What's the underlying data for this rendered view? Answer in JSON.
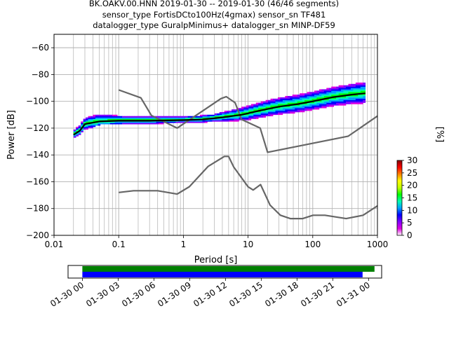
{
  "title": {
    "line1": "BK.OAKV.00.HNN   2019-01-30 -- 2019-01-30  (46/46 segments)",
    "line2": "sensor_type FortisDCto100Hz(4gmax) sensor_sn TF481",
    "line3": "datalogger_type GuralpMinimus+ datalogger_sn MINP-DF59"
  },
  "chart_data": [
    {
      "type": "heatmap",
      "title": "BK.OAKV.00.HNN   2019-01-30 -- 2019-01-30  (46/46 segments)",
      "xlabel": "Period [s]",
      "ylabel": "Power [dB]",
      "x_scale": "log",
      "xlim": [
        0.01,
        1000
      ],
      "ylim": [
        -200,
        -50
      ],
      "x_ticks": [
        "0.01",
        "0.1",
        "1",
        "10",
        "100",
        "1000"
      ],
      "y_ticks": [
        "−60",
        "−80",
        "−100",
        "−120",
        "−140",
        "−160",
        "−180",
        "−200"
      ],
      "grid": true,
      "colorbar": {
        "label": "[%]",
        "range": [
          0,
          30
        ],
        "ticks": [
          "0",
          "5",
          "10",
          "15",
          "20",
          "25",
          "30"
        ],
        "colors": [
          "#ffffff",
          "#e000e0",
          "#8000ff",
          "#0000ff",
          "#00a0ff",
          "#00ffb0",
          "#00ff00",
          "#c0ff00",
          "#ffff00",
          "#ff8000",
          "#ff0000",
          "#800000"
        ]
      },
      "series": [
        {
          "role": "noise-model-high",
          "color": "#666666",
          "x": [
            0.1,
            0.22,
            0.32,
            0.8,
            3.8,
            4.6,
            6.3,
            7.9,
            15.4,
            20,
            354,
            1000
          ],
          "y": [
            -91.5,
            -97.4,
            -110.5,
            -120,
            -98,
            -96.5,
            -101,
            -113.5,
            -120,
            -138,
            -126,
            -111
          ]
        },
        {
          "role": "noise-model-low",
          "color": "#666666",
          "x": [
            0.1,
            0.17,
            0.4,
            0.8,
            1.24,
            2.4,
            4.3,
            5,
            6,
            10,
            12,
            15.6,
            21.9,
            31.6,
            45,
            70,
            101,
            154,
            328,
            600,
            1000
          ],
          "y": [
            -168,
            -166.7,
            -166.7,
            -169.2,
            -163.7,
            -148.6,
            -141.1,
            -141.1,
            -149,
            -163.8,
            -166.2,
            -162.1,
            -177.5,
            -185,
            -187.5,
            -187.5,
            -185,
            -185,
            -187.5,
            -185,
            -178
          ]
        },
        {
          "role": "mode",
          "color": "#000000",
          "x": [
            0.02,
            0.025,
            0.03,
            0.05,
            0.1,
            0.3,
            1,
            2,
            4,
            8,
            15,
            30,
            60,
            100,
            200,
            400,
            650
          ],
          "y": [
            -125,
            -122,
            -117,
            -115,
            -114.5,
            -114.5,
            -114,
            -113.5,
            -112,
            -110,
            -107,
            -104,
            -102,
            -100,
            -97,
            -95,
            -94
          ]
        }
      ],
      "density_band": {
        "x": [
          0.02,
          0.03,
          0.05,
          0.1,
          0.3,
          1,
          3,
          10,
          30,
          100,
          300,
          650
        ],
        "y_low": [
          -128,
          -122,
          -117,
          -117,
          -117,
          -117,
          -116,
          -114,
          -110,
          -106,
          -103,
          -101
        ],
        "y_high": [
          -122,
          -113,
          -107,
          -110,
          -111,
          -112,
          -110,
          -103,
          -97,
          -92,
          -88,
          -85
        ]
      }
    },
    {
      "type": "timeline",
      "x_ticks": [
        "01-30 00",
        "01-30 03",
        "01-30 06",
        "01-30 09",
        "01-30 12",
        "01-30 15",
        "01-30 18",
        "01-30 21",
        "01-31 00"
      ],
      "xlim_hours": [
        -1.2,
        25.1
      ],
      "bars": [
        {
          "role": "data-coverage",
          "color": "#008000",
          "start_hour": 0,
          "end_hour": 24.5
        },
        {
          "role": "psd-coverage",
          "color": "#0000ff",
          "start_hour": 0,
          "end_hour": 23.5
        }
      ]
    }
  ]
}
